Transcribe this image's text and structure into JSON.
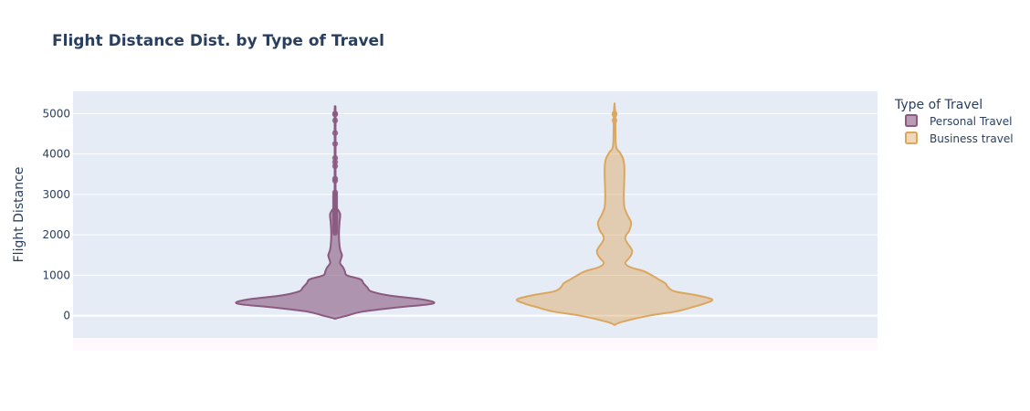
{
  "chart_data": {
    "type": "violin",
    "title": "Flight Distance Dist. by Type of Travel",
    "xlabel": "",
    "ylabel": "Flight Distance",
    "ylim": [
      -550,
      5550
    ],
    "yticks": [
      0,
      1000,
      2000,
      3000,
      4000,
      5000
    ],
    "yticklabels": [
      "0",
      "1000",
      "2000",
      "3000",
      "4000",
      "5000"
    ],
    "grid": true,
    "legend": {
      "title": "Type of Travel",
      "position": "right"
    },
    "series": [
      {
        "name": "Personal Travel",
        "color": "#8b5a80",
        "fill": "rgba(139,90,128,0.6)",
        "density": [
          [
            -75,
            0
          ],
          [
            0,
            0.12
          ],
          [
            100,
            0.28
          ],
          [
            200,
            0.62
          ],
          [
            300,
            1.0
          ],
          [
            400,
            0.9
          ],
          [
            500,
            0.55
          ],
          [
            600,
            0.37
          ],
          [
            700,
            0.33
          ],
          [
            800,
            0.29
          ],
          [
            900,
            0.26
          ],
          [
            1000,
            0.12
          ],
          [
            1100,
            0.1
          ],
          [
            1200,
            0.08
          ],
          [
            1300,
            0.05
          ],
          [
            1400,
            0.06
          ],
          [
            1500,
            0.07
          ],
          [
            1600,
            0.055
          ],
          [
            1700,
            0.047
          ],
          [
            1900,
            0.04
          ],
          [
            2100,
            0.04
          ],
          [
            2300,
            0.045
          ],
          [
            2500,
            0.052
          ],
          [
            2600,
            0.035
          ],
          [
            2700,
            0.01
          ],
          [
            3000,
            0.005
          ],
          [
            5000,
            0.005
          ],
          [
            5100,
            0
          ]
        ],
        "outliers": [
          5000,
          4980,
          4830,
          4520,
          4250,
          3900,
          3800,
          3700,
          3390,
          3340,
          3050,
          3000,
          2950,
          2900,
          2850,
          2800,
          2750,
          2700,
          2650,
          2600,
          2550,
          2500,
          2450,
          2400,
          2350,
          2300,
          2250,
          2200,
          2150,
          2100,
          2050
        ]
      },
      {
        "name": "Business travel",
        "color": "#dba75f",
        "fill": "rgba(219,167,95,0.45)",
        "density": [
          [
            -230,
            0
          ],
          [
            -150,
            0.08
          ],
          [
            0,
            0.35
          ],
          [
            100,
            0.62
          ],
          [
            200,
            0.78
          ],
          [
            300,
            0.92
          ],
          [
            400,
            1.0
          ],
          [
            500,
            0.85
          ],
          [
            600,
            0.62
          ],
          [
            700,
            0.55
          ],
          [
            800,
            0.52
          ],
          [
            900,
            0.45
          ],
          [
            1000,
            0.38
          ],
          [
            1100,
            0.3
          ],
          [
            1200,
            0.16
          ],
          [
            1300,
            0.11
          ],
          [
            1400,
            0.14
          ],
          [
            1500,
            0.17
          ],
          [
            1600,
            0.18
          ],
          [
            1700,
            0.16
          ],
          [
            1800,
            0.13
          ],
          [
            1900,
            0.11
          ],
          [
            2000,
            0.12
          ],
          [
            2100,
            0.15
          ],
          [
            2300,
            0.17
          ],
          [
            2500,
            0.13
          ],
          [
            2700,
            0.1
          ],
          [
            3000,
            0.095
          ],
          [
            3400,
            0.1
          ],
          [
            3700,
            0.1
          ],
          [
            3900,
            0.085
          ],
          [
            4050,
            0.05
          ],
          [
            4200,
            0.015
          ],
          [
            4800,
            0.008
          ],
          [
            5000,
            0.008
          ],
          [
            5250,
            0
          ]
        ],
        "outliers": [
          5000,
          4980,
          4830
        ]
      }
    ]
  }
}
